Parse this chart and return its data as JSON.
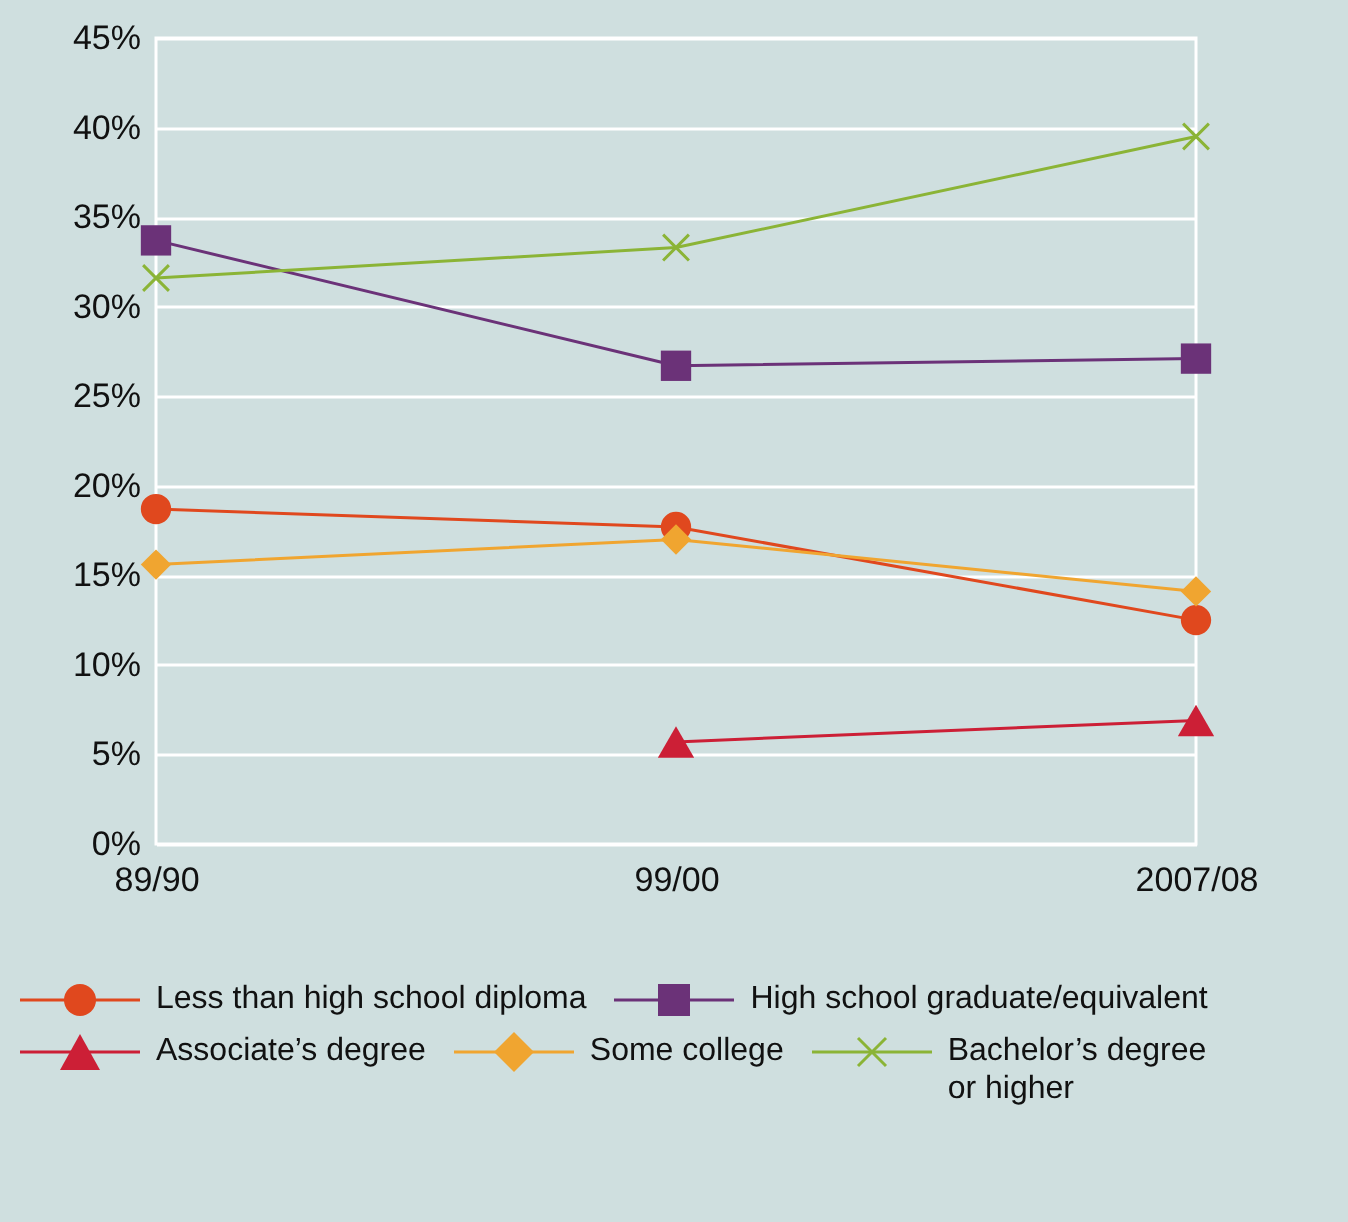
{
  "chart_data": {
    "type": "line",
    "categories": [
      "89/90",
      "99/00",
      "2007/08"
    ],
    "series": [
      {
        "name": "Less than high school diploma",
        "color": "#e0481e",
        "marker": "circle",
        "values": [
          18.7,
          17.7,
          12.5
        ]
      },
      {
        "name": "High school graduate/equivalent",
        "color": "#6b3278",
        "marker": "square",
        "values": [
          33.7,
          26.7,
          27.1
        ]
      },
      {
        "name": "Associate’s degree",
        "color": "#cc1f36",
        "marker": "triangle",
        "values": [
          null,
          5.7,
          6.9
        ]
      },
      {
        "name": "Some college",
        "color": "#f0a530",
        "marker": "diamond",
        "values": [
          15.6,
          17.0,
          14.1
        ]
      },
      {
        "name": "Bachelor’s degree or higher",
        "color": "#8bb436",
        "marker": "cross",
        "values": [
          31.6,
          33.3,
          39.5
        ]
      }
    ],
    "ylim": [
      0,
      45
    ],
    "yticks": [
      {
        "value": 0,
        "label": "0%"
      },
      {
        "value": 5,
        "label": "5%"
      },
      {
        "value": 10,
        "label": "10%"
      },
      {
        "value": 15,
        "label": "15%"
      },
      {
        "value": 20,
        "label": "20%"
      },
      {
        "value": 25,
        "label": "25%"
      },
      {
        "value": 30,
        "label": "30%"
      },
      {
        "value": 35,
        "label": "35%"
      },
      {
        "value": 40,
        "label": "40%"
      },
      {
        "value": 45,
        "label": "45%"
      }
    ],
    "grid": "y",
    "legend": "bottom",
    "line_style": "solid"
  }
}
